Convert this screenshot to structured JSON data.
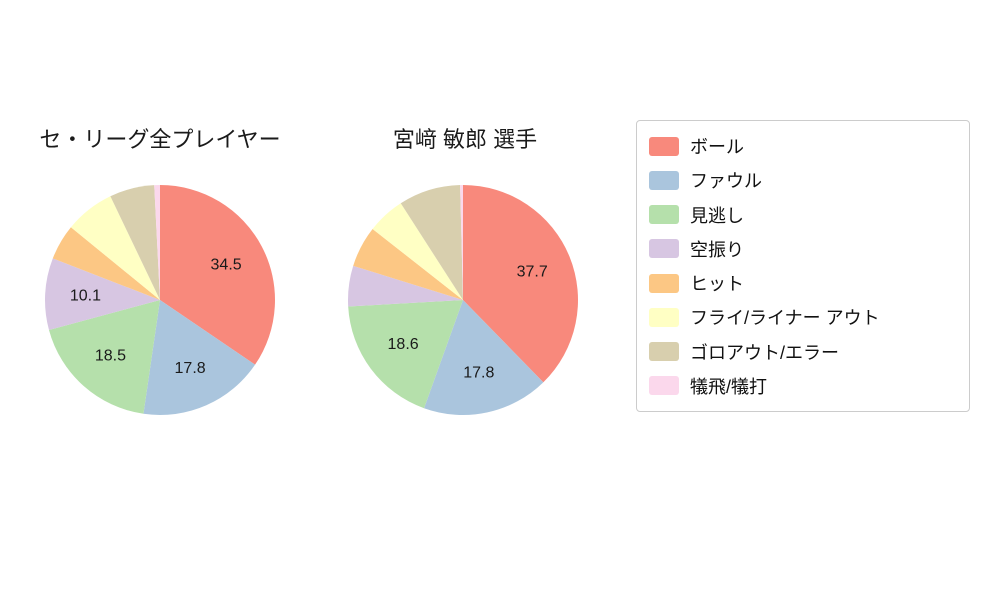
{
  "legend": {
    "items": [
      {
        "id": "ball",
        "label": "ボール",
        "color": "#f8897c"
      },
      {
        "id": "foul",
        "label": "ファウル",
        "color": "#aac5dd"
      },
      {
        "id": "called-strike",
        "label": "見逃し",
        "color": "#b5e0ab"
      },
      {
        "id": "swinging-strike",
        "label": "空振り",
        "color": "#d7c6e2"
      },
      {
        "id": "hit",
        "label": "ヒット",
        "color": "#fcc784"
      },
      {
        "id": "fly-liner-out",
        "label": "フライ/ライナー アウト",
        "color": "#ffffc4"
      },
      {
        "id": "ground-out-error",
        "label": "ゴロアウト/エラー",
        "color": "#d8cfae"
      },
      {
        "id": "sac-fly-bunt",
        "label": "犠飛/犠打",
        "color": "#fbd8ec"
      }
    ]
  },
  "chart_data": [
    {
      "type": "pie",
      "title": "セ・リーグ全プレイヤー",
      "categories": [
        "ボール",
        "ファウル",
        "見逃し",
        "空振り",
        "ヒット",
        "フライ/ライナー アウト",
        "ゴロアウト/エラー",
        "犠飛/犠打"
      ],
      "values": [
        34.5,
        17.8,
        18.5,
        10.1,
        5.0,
        7.0,
        6.3,
        0.8
      ],
      "labels": [
        "34.5",
        "17.8",
        "18.5",
        "10.1",
        "",
        "",
        "",
        ""
      ],
      "start_angle": "top",
      "direction": "clockwise",
      "legend_position": "right"
    },
    {
      "type": "pie",
      "title": "宮﨑 敏郎 選手",
      "categories": [
        "ボール",
        "ファウル",
        "見逃し",
        "空振り",
        "ヒット",
        "フライ/ライナー アウト",
        "ゴロアウト/エラー",
        "犠飛/犠打"
      ],
      "values": [
        37.7,
        17.8,
        18.6,
        5.7,
        5.8,
        5.3,
        8.7,
        0.4
      ],
      "labels": [
        "37.7",
        "17.8",
        "18.6",
        "",
        "",
        "",
        "",
        ""
      ],
      "start_angle": "top",
      "direction": "clockwise",
      "legend_position": "right"
    }
  ]
}
